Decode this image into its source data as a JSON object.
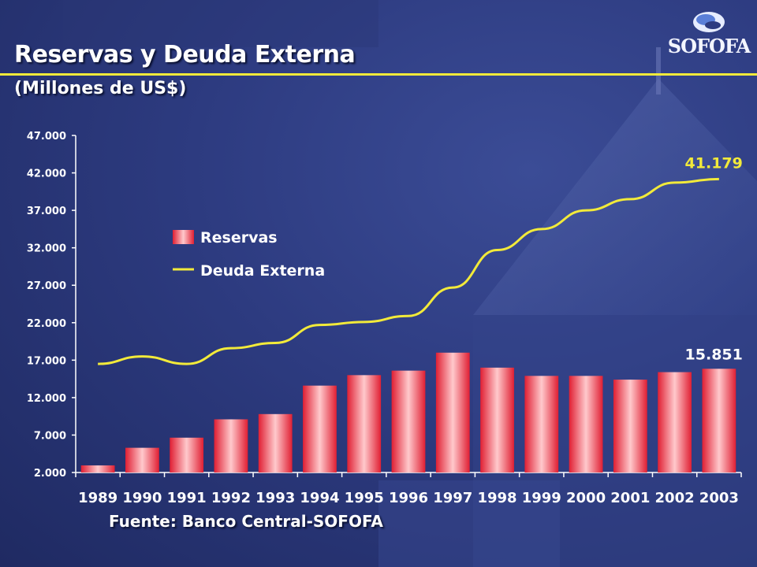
{
  "header": {
    "title": "Reservas y Deuda Externa",
    "subtitle": "(Millones de US$)",
    "logo_text": "SOFOFA"
  },
  "source": "Fuente: Banco Central-SOFOFA",
  "colors": {
    "background": "#2d3b80",
    "accent_yellow": "#f2ea3a",
    "bar_red": "#e8273a"
  },
  "chart_data": {
    "type": "bar",
    "categories": [
      "1989",
      "1990",
      "1991",
      "1992",
      "1993",
      "1994",
      "1995",
      "1996",
      "1997",
      "1998",
      "1999",
      "2000",
      "2001",
      "2002",
      "2003"
    ],
    "series": [
      {
        "name": "Reservas",
        "type": "bar",
        "values": [
          2950,
          5300,
          6650,
          9100,
          9800,
          13600,
          15000,
          15600,
          18000,
          16000,
          14900,
          14900,
          14400,
          15400,
          15851
        ]
      },
      {
        "name": "Deuda Externa",
        "type": "line",
        "values": [
          16500,
          17500,
          16500,
          18600,
          19300,
          21700,
          22100,
          22900,
          26700,
          31700,
          34500,
          37000,
          38500,
          40700,
          41179
        ]
      }
    ],
    "ylim": [
      2000,
      47000
    ],
    "yticks": [
      "2.000",
      "7.000",
      "12.000",
      "17.000",
      "22.000",
      "27.000",
      "32.000",
      "37.000",
      "42.000",
      "47.000"
    ],
    "annotations": {
      "line_last": "41.179",
      "bar_last": "15.851"
    },
    "legend_position": "top-left",
    "grid": false
  }
}
